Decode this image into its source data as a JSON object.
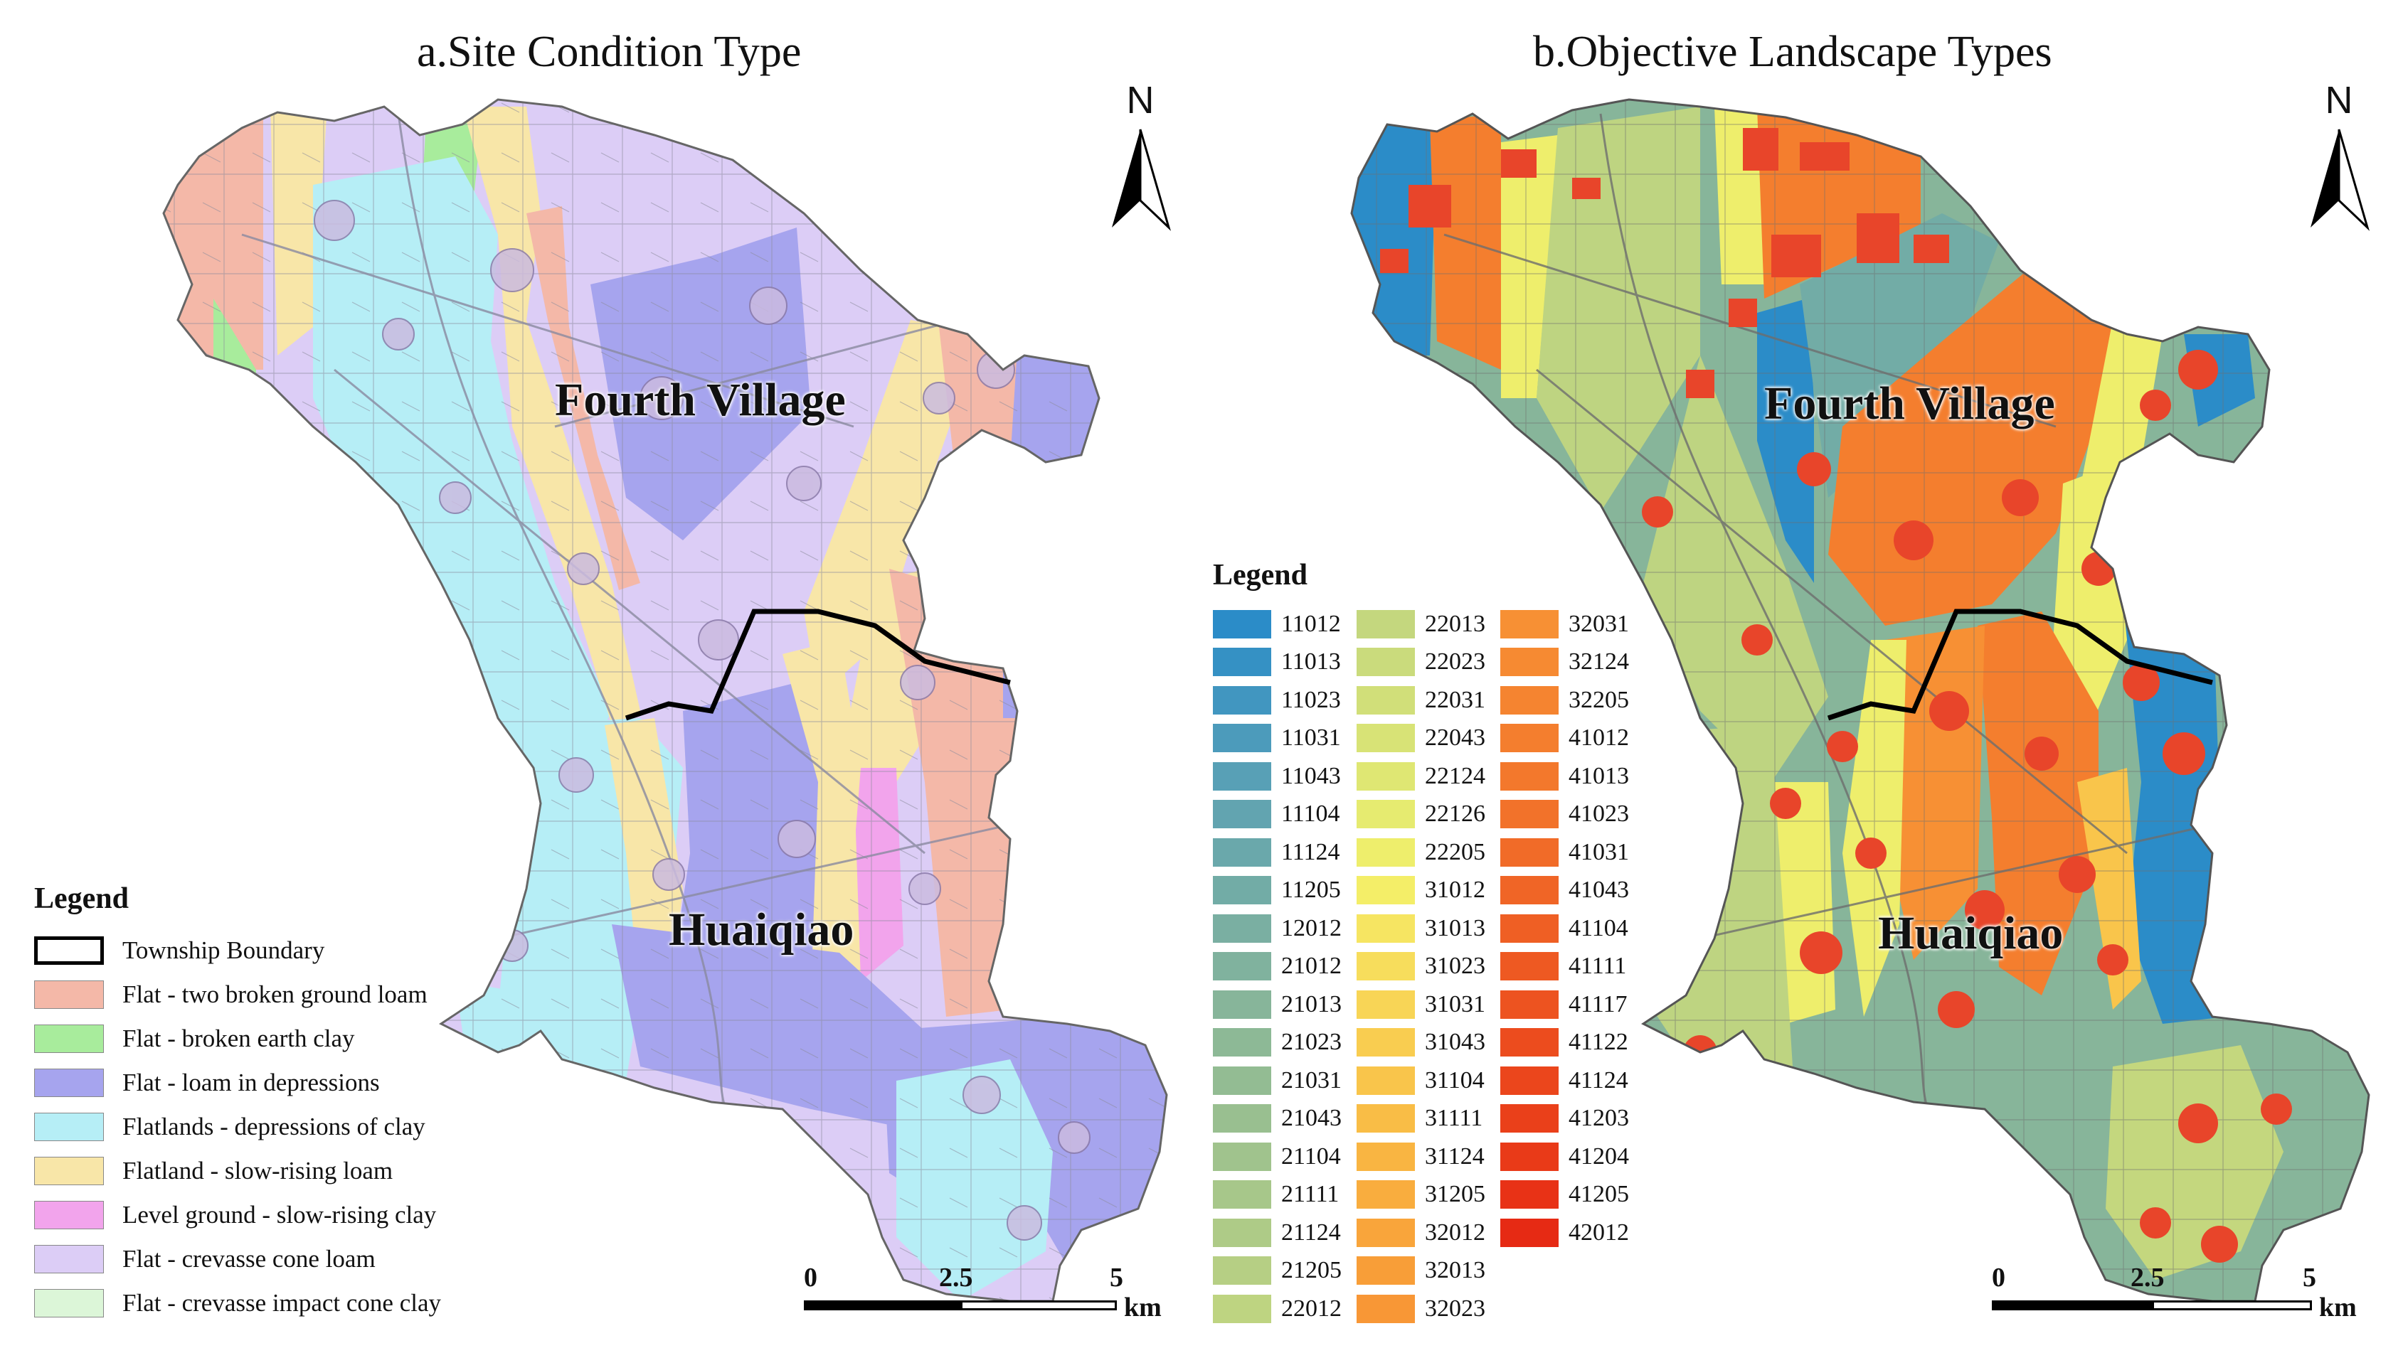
{
  "panel_a": {
    "title": "a.Site Condition Type",
    "place_labels": [
      "Fourth Village",
      "Huaiqiao"
    ],
    "north_label": "N",
    "scale": {
      "ticks": [
        "0",
        "2.5",
        "5"
      ],
      "unit": "km"
    },
    "legend": {
      "title": "Legend",
      "items": [
        {
          "label": "Township Boundary",
          "color": "#ffffff",
          "style": "outline"
        },
        {
          "label": "Flat - two broken ground loam",
          "color": "#f4b8a8"
        },
        {
          "label": "Flat - broken earth clay",
          "color": "#a8ec9c"
        },
        {
          "label": "Flat - loam in depressions",
          "color": "#a6a4ee"
        },
        {
          "label": "Flatlands - depressions of clay",
          "color": "#b6eef6"
        },
        {
          "label": "Flatland - slow-rising loam",
          "color": "#f8e6a8"
        },
        {
          "label": "Level ground - slow-rising clay",
          "color": "#f2a4ec"
        },
        {
          "label": "Flat - crevasse cone loam",
          "color": "#dccdf6"
        },
        {
          "label": "Flat - crevasse impact cone clay",
          "color": "#dcf6d8"
        }
      ]
    }
  },
  "panel_b": {
    "title": "b.Objective Landscape Types",
    "place_labels": [
      "Fourth Village",
      "Huaiqiao"
    ],
    "north_label": "N",
    "scale": {
      "ticks": [
        "0",
        "2.5",
        "5"
      ],
      "unit": "km"
    },
    "legend": {
      "title": "Legend",
      "columns": [
        [
          {
            "code": "11012",
            "color": "#2b8cc8"
          },
          {
            "code": "11013",
            "color": "#3591c4"
          },
          {
            "code": "11023",
            "color": "#4196c0"
          },
          {
            "code": "11031",
            "color": "#4c9bbb"
          },
          {
            "code": "11043",
            "color": "#58a0b6"
          },
          {
            "code": "11104",
            "color": "#62a4b0"
          },
          {
            "code": "11124",
            "color": "#6aa8ab"
          },
          {
            "code": "11205",
            "color": "#72aca6"
          },
          {
            "code": "12012",
            "color": "#7aafa2"
          },
          {
            "code": "21012",
            "color": "#80b29e"
          },
          {
            "code": "21013",
            "color": "#87b59a"
          },
          {
            "code": "21023",
            "color": "#8db996"
          },
          {
            "code": "21031",
            "color": "#93bc93"
          },
          {
            "code": "21043",
            "color": "#99bf90"
          },
          {
            "code": "21104",
            "color": "#a0c38d"
          },
          {
            "code": "21111",
            "color": "#a7c78a"
          },
          {
            "code": "21124",
            "color": "#aecb87"
          },
          {
            "code": "21205",
            "color": "#b6cf84"
          },
          {
            "code": "22012",
            "color": "#bed481"
          }
        ],
        [
          {
            "code": "22013",
            "color": "#c4d77e"
          },
          {
            "code": "22023",
            "color": "#cadb7c"
          },
          {
            "code": "22031",
            "color": "#d1df79"
          },
          {
            "code": "22043",
            "color": "#d8e376"
          },
          {
            "code": "22124",
            "color": "#dfe773"
          },
          {
            "code": "22126",
            "color": "#e6eb70"
          },
          {
            "code": "22205",
            "color": "#eeee6c"
          },
          {
            "code": "31012",
            "color": "#f4ee68"
          },
          {
            "code": "31013",
            "color": "#f6e562"
          },
          {
            "code": "31023",
            "color": "#f7dd5c"
          },
          {
            "code": "31031",
            "color": "#f8d556"
          },
          {
            "code": "31043",
            "color": "#f9cd50"
          },
          {
            "code": "31104",
            "color": "#f9c54b"
          },
          {
            "code": "31111",
            "color": "#f9bd46"
          },
          {
            "code": "31124",
            "color": "#f9b542"
          },
          {
            "code": "31205",
            "color": "#f9ad3e"
          },
          {
            "code": "32012",
            "color": "#f9a53b"
          },
          {
            "code": "32013",
            "color": "#f89e38"
          },
          {
            "code": "32023",
            "color": "#f89736"
          }
        ],
        [
          {
            "code": "32031",
            "color": "#f79034"
          },
          {
            "code": "32124",
            "color": "#f68a32"
          },
          {
            "code": "32205",
            "color": "#f58430"
          },
          {
            "code": "41012",
            "color": "#f47e2e"
          },
          {
            "code": "41013",
            "color": "#f3782c"
          },
          {
            "code": "41023",
            "color": "#f2722a"
          },
          {
            "code": "41031",
            "color": "#f16b28"
          },
          {
            "code": "41043",
            "color": "#f06526"
          },
          {
            "code": "41104",
            "color": "#ef5f24"
          },
          {
            "code": "41111",
            "color": "#ee5922"
          },
          {
            "code": "41117",
            "color": "#ed5320"
          },
          {
            "code": "41122",
            "color": "#ec4c1e"
          },
          {
            "code": "41124",
            "color": "#eb461c"
          },
          {
            "code": "41203",
            "color": "#ea401a"
          },
          {
            "code": "41204",
            "color": "#e93a18"
          },
          {
            "code": "41205",
            "color": "#e83216"
          },
          {
            "code": "42012",
            "color": "#e62a14"
          }
        ]
      ]
    }
  }
}
